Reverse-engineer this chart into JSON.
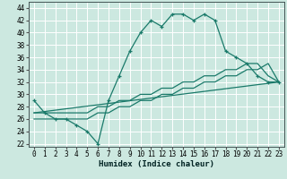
{
  "xlabel": "Humidex (Indice chaleur)",
  "bg_color": "#cce8e0",
  "grid_color": "#ffffff",
  "line_color": "#1a7a6a",
  "xlim": [
    -0.5,
    23.5
  ],
  "ylim": [
    21.5,
    45
  ],
  "yticks": [
    22,
    24,
    26,
    28,
    30,
    32,
    34,
    36,
    38,
    40,
    42,
    44
  ],
  "xticks": [
    0,
    1,
    2,
    3,
    4,
    5,
    6,
    7,
    8,
    9,
    10,
    11,
    12,
    13,
    14,
    15,
    16,
    17,
    18,
    19,
    20,
    21,
    22,
    23
  ],
  "line1_x": [
    0,
    1,
    2,
    3,
    4,
    5,
    6,
    7,
    8,
    9,
    10,
    11,
    12,
    13,
    14,
    15,
    16,
    17,
    18,
    19,
    20,
    21,
    22,
    23
  ],
  "line1_y": [
    29,
    27,
    26,
    26,
    25,
    24,
    22,
    29,
    33,
    37,
    40,
    42,
    41,
    43,
    43,
    42,
    43,
    42,
    37,
    36,
    35,
    33,
    32,
    32
  ],
  "line2_x": [
    0,
    1,
    2,
    3,
    4,
    5,
    6,
    7,
    8,
    9,
    10,
    11,
    12,
    13,
    14,
    15,
    16,
    17,
    18,
    19,
    20,
    21,
    22,
    23
  ],
  "line2_y": [
    26,
    26,
    26,
    26,
    26,
    26,
    27,
    27,
    28,
    28,
    29,
    29,
    30,
    30,
    31,
    31,
    32,
    32,
    33,
    33,
    34,
    34,
    35,
    32
  ],
  "line3_x": [
    0,
    1,
    2,
    3,
    4,
    5,
    6,
    7,
    8,
    9,
    10,
    11,
    12,
    13,
    14,
    15,
    16,
    17,
    18,
    19,
    20,
    21,
    22,
    23
  ],
  "line3_y": [
    27,
    27,
    27,
    27,
    27,
    27,
    28,
    28,
    29,
    29,
    30,
    30,
    31,
    31,
    32,
    32,
    33,
    33,
    34,
    34,
    35,
    35,
    33,
    32
  ],
  "line4_x": [
    0,
    23
  ],
  "line4_y": [
    27,
    32
  ],
  "tick_fontsize": 5.5,
  "xlabel_fontsize": 6.5
}
